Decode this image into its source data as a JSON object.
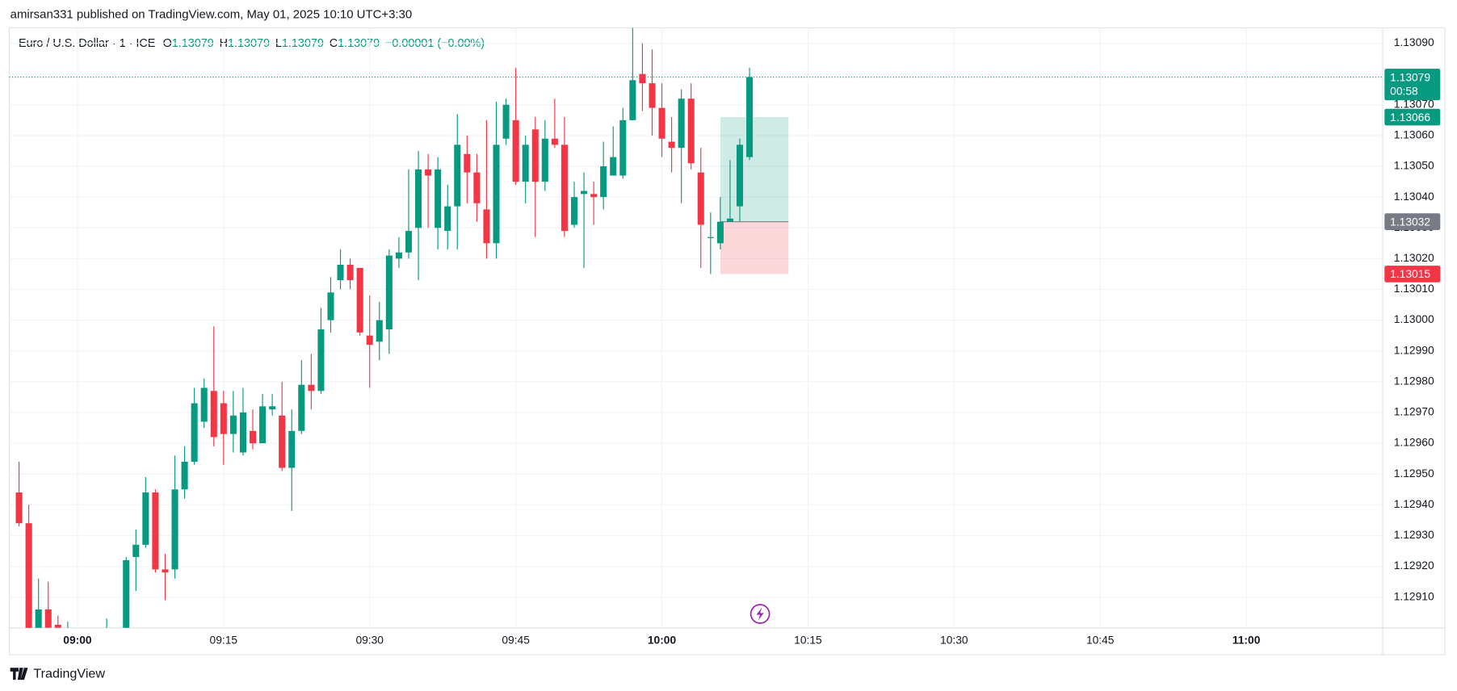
{
  "chart_data": {
    "type": "candlestick",
    "source": "amirsan331 published on TradingView.com, May 01, 2025 10:10 UTC+3:30",
    "title": "Euro / U.S. Dollar · 1 · ICE",
    "ohlc_legend": [
      {
        "key": "O",
        "text": "1.13079"
      },
      {
        "key": "H",
        "text": "1.13079"
      },
      {
        "key": "L",
        "text": "1.13079"
      },
      {
        "key": "C",
        "text": "1.13079"
      }
    ],
    "change": "−0.00001 (−0.00%)",
    "brand": "TradingView",
    "up_color": "#089981",
    "down_color": "#f23645",
    "grid": true,
    "x": [
      "08:54",
      "08:55",
      "08:56",
      "08:57",
      "08:58",
      "08:59",
      "09:00",
      "09:01",
      "09:02",
      "09:03",
      "09:04",
      "09:05",
      "09:06",
      "09:07",
      "09:08",
      "09:09",
      "09:10",
      "09:11",
      "09:12",
      "09:13",
      "09:14",
      "09:15",
      "09:16",
      "09:17",
      "09:18",
      "09:19",
      "09:20",
      "09:21",
      "09:22",
      "09:23",
      "09:24",
      "09:25",
      "09:26",
      "09:27",
      "09:28",
      "09:29",
      "09:30",
      "09:31",
      "09:32",
      "09:33",
      "09:34",
      "09:35",
      "09:36",
      "09:37",
      "09:38",
      "09:39",
      "09:40",
      "09:41",
      "09:42",
      "09:43",
      "09:44",
      "09:45",
      "09:46",
      "09:47",
      "09:48",
      "09:49",
      "09:50",
      "09:51",
      "09:52",
      "09:53",
      "09:54",
      "09:55",
      "09:56",
      "09:57",
      "09:58",
      "09:59",
      "10:00",
      "10:01",
      "10:02",
      "10:03",
      "10:04",
      "10:05",
      "10:06",
      "10:07",
      "10:08",
      "10:09"
    ],
    "open": [
      1.12944,
      1.12934,
      1.12899,
      1.12906,
      1.12901,
      1.129,
      1.12898,
      1.12897,
      1.12896,
      1.12895,
      1.12897,
      1.12896,
      1.12923,
      1.12927,
      1.12944,
      1.12919,
      1.12919,
      1.12945,
      1.12954,
      1.12967,
      1.12977,
      1.12973,
      1.12963,
      1.12957,
      1.12964,
      1.1296,
      1.12971,
      1.12969,
      1.12952,
      1.12964,
      1.12979,
      1.12977,
      1.13,
      1.13013,
      1.13018,
      1.13017,
      1.12995,
      1.12993,
      1.12997,
      1.1302,
      1.13022,
      1.1303,
      1.13049,
      1.1303,
      1.13029,
      1.13037,
      1.13054,
      1.13048,
      1.13036,
      1.13025,
      1.13059,
      1.13065,
      1.13045,
      1.13062,
      1.13045,
      1.13059,
      1.13057,
      1.13031,
      1.13041,
      1.13041,
      1.1304,
      1.13047,
      1.13047,
      1.13065,
      1.1308,
      1.13077,
      1.13069,
      1.13058,
      1.13056,
      1.13072,
      1.13048,
      1.13027,
      1.13025,
      1.13032,
      1.13037,
      1.13053
    ],
    "high": [
      1.12954,
      1.1294,
      1.12916,
      1.12915,
      1.12904,
      1.12902,
      1.12899,
      1.12899,
      1.12898,
      1.12903,
      1.12899,
      1.12923,
      1.12932,
      1.12949,
      1.12945,
      1.12924,
      1.12956,
      1.12959,
      1.12978,
      1.12981,
      1.12998,
      1.12977,
      1.12977,
      1.12978,
      1.12971,
      1.12976,
      1.12976,
      1.1298,
      1.12971,
      1.12987,
      1.12989,
      1.13004,
      1.13014,
      1.13023,
      1.1302,
      1.13017,
      1.13008,
      1.13006,
      1.13023,
      1.13027,
      1.13049,
      1.13055,
      1.13054,
      1.13053,
      1.13044,
      1.13067,
      1.1306,
      1.13054,
      1.13065,
      1.13071,
      1.13072,
      1.13082,
      1.1306,
      1.13066,
      1.13065,
      1.13072,
      1.13066,
      1.13045,
      1.13048,
      1.13045,
      1.13058,
      1.13063,
      1.13069,
      1.13095,
      1.1309,
      1.13088,
      1.13077,
      1.13066,
      1.13075,
      1.13077,
      1.13056,
      1.13035,
      1.1304,
      1.13052,
      1.13059,
      1.13082
    ],
    "low": [
      1.12933,
      1.12896,
      1.12898,
      1.12899,
      1.12899,
      1.12899,
      1.12895,
      1.12894,
      1.12893,
      1.12893,
      1.12894,
      1.12895,
      1.12912,
      1.12926,
      1.12918,
      1.12909,
      1.12916,
      1.12942,
      1.12953,
      1.12965,
      1.12959,
      1.12953,
      1.12957,
      1.12956,
      1.12958,
      1.1296,
      1.12969,
      1.12951,
      1.12938,
      1.12963,
      1.12971,
      1.12976,
      1.12996,
      1.1301,
      1.1301,
      1.12995,
      1.12978,
      1.12987,
      1.12989,
      1.13017,
      1.1302,
      1.13013,
      1.1303,
      1.13023,
      1.13023,
      1.13023,
      1.13038,
      1.13032,
      1.1302,
      1.1302,
      1.13057,
      1.13044,
      1.13038,
      1.13027,
      1.13042,
      1.13056,
      1.13027,
      1.1303,
      1.13017,
      1.13031,
      1.13036,
      1.13047,
      1.13046,
      1.13065,
      1.13068,
      1.1306,
      1.13053,
      1.13048,
      1.13038,
      1.13049,
      1.13017,
      1.13015,
      1.13023,
      1.13032,
      1.13032,
      1.13052
    ],
    "close": [
      1.12934,
      1.12898,
      1.12906,
      1.129,
      1.129,
      1.129,
      1.12897,
      1.12896,
      1.12895,
      1.12897,
      1.12896,
      1.12922,
      1.12927,
      1.12944,
      1.12919,
      1.12918,
      1.12945,
      1.12954,
      1.12973,
      1.12978,
      1.12962,
      1.12963,
      1.12969,
      1.1297,
      1.1296,
      1.12972,
      1.12972,
      1.12952,
      1.12964,
      1.12979,
      1.12977,
      1.12997,
      1.13009,
      1.13018,
      1.13013,
      1.12996,
      1.12992,
      1.13,
      1.13021,
      1.13022,
      1.13029,
      1.13049,
      1.13047,
      1.13049,
      1.13037,
      1.13057,
      1.13048,
      1.13038,
      1.13025,
      1.13057,
      1.1307,
      1.13045,
      1.13057,
      1.13045,
      1.13059,
      1.13057,
      1.13029,
      1.1304,
      1.13042,
      1.1304,
      1.1305,
      1.13053,
      1.13065,
      1.13078,
      1.13077,
      1.13069,
      1.13059,
      1.13056,
      1.13072,
      1.13051,
      1.13031,
      1.13027,
      1.13032,
      1.13033,
      1.13057,
      1.13079
    ],
    "xlim": [
      "08:53",
      "11:14"
    ],
    "xticks": [
      "09:00",
      "09:15",
      "09:30",
      "09:45",
      "10:00",
      "10:15",
      "10:30",
      "10:45",
      "11:00"
    ],
    "ylim": [
      1.129,
      1.13095
    ],
    "yticks": [
      {
        "value": 1.1309,
        "label": "1.13090"
      },
      {
        "value": 1.1308,
        "label": "1.13080"
      },
      {
        "value": 1.1307,
        "label": "1.13070"
      },
      {
        "value": 1.1306,
        "label": "1.13060"
      },
      {
        "value": 1.1305,
        "label": "1.13050"
      },
      {
        "value": 1.1304,
        "label": "1.13040"
      },
      {
        "value": 1.1303,
        "label": "1.13030"
      },
      {
        "value": 1.1302,
        "label": "1.13020"
      },
      {
        "value": 1.1301,
        "label": "1.13010"
      },
      {
        "value": 1.13,
        "label": "1.13000"
      },
      {
        "value": 1.1299,
        "label": "1.12990"
      },
      {
        "value": 1.1298,
        "label": "1.12980"
      },
      {
        "value": 1.1297,
        "label": "1.12970"
      },
      {
        "value": 1.1296,
        "label": "1.12960"
      },
      {
        "value": 1.1295,
        "label": "1.12950"
      },
      {
        "value": 1.1294,
        "label": "1.12940"
      },
      {
        "value": 1.1293,
        "label": "1.12930"
      },
      {
        "value": 1.1292,
        "label": "1.12920"
      },
      {
        "value": 1.1291,
        "label": "1.12910"
      }
    ],
    "last_price": {
      "value": 1.13079,
      "label": "1.13079",
      "countdown": "00:58"
    },
    "position": {
      "start": "10:06",
      "end": "10:13",
      "target": {
        "value": 1.13066,
        "label": "1.13066",
        "color": "#089981"
      },
      "entry": {
        "value": 1.13032,
        "label": "1.13032",
        "color": "#787b86"
      },
      "stop": {
        "value": 1.13015,
        "label": "1.13015",
        "color": "#f23645"
      }
    }
  }
}
